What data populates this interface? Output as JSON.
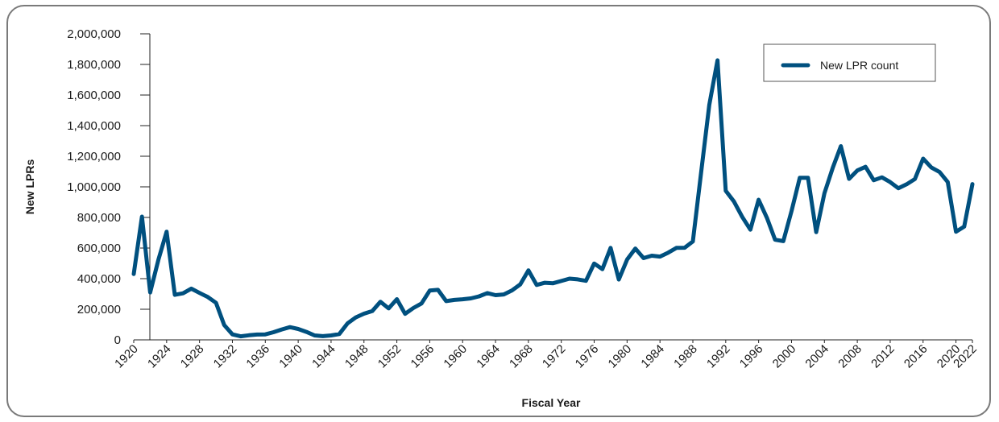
{
  "chart_data": {
    "type": "line",
    "title": "",
    "xlabel": "Fiscal Year",
    "ylabel": "New LPRs",
    "xlim": [
      1920,
      2022
    ],
    "ylim": [
      0,
      2000000
    ],
    "grid": false,
    "legend_position": "top-right",
    "x_ticks": [
      1920,
      1924,
      1928,
      1932,
      1936,
      1940,
      1944,
      1948,
      1952,
      1956,
      1960,
      1964,
      1968,
      1972,
      1976,
      1980,
      1984,
      1988,
      1992,
      1996,
      2000,
      2004,
      2008,
      2012,
      2016,
      2020,
      2022
    ],
    "y_ticks": [
      0,
      200000,
      400000,
      600000,
      800000,
      1000000,
      1200000,
      1400000,
      1600000,
      1800000,
      2000000
    ],
    "y_tick_labels": [
      "0",
      "200,000",
      "400,000",
      "600,000",
      "800,000",
      "1,000,000",
      "1,200,000",
      "1,400,000",
      "1,600,000",
      "1,800,000",
      "2,000,000"
    ],
    "series": [
      {
        "name": "New LPR count",
        "color": "#00507f",
        "x": [
          1920,
          1921,
          1922,
          1923,
          1924,
          1925,
          1926,
          1927,
          1928,
          1929,
          1930,
          1931,
          1932,
          1933,
          1934,
          1935,
          1936,
          1937,
          1938,
          1939,
          1940,
          1941,
          1942,
          1943,
          1944,
          1945,
          1946,
          1947,
          1948,
          1949,
          1950,
          1951,
          1952,
          1953,
          1954,
          1955,
          1956,
          1957,
          1958,
          1959,
          1960,
          1961,
          1962,
          1963,
          1964,
          1965,
          1966,
          1967,
          1968,
          1969,
          1970,
          1971,
          1972,
          1973,
          1974,
          1975,
          1976,
          1977,
          1978,
          1979,
          1980,
          1981,
          1982,
          1983,
          1984,
          1985,
          1986,
          1987,
          1988,
          1989,
          1990,
          1991,
          1992,
          1993,
          1994,
          1995,
          1996,
          1997,
          1998,
          1999,
          2000,
          2001,
          2002,
          2003,
          2004,
          2005,
          2006,
          2007,
          2008,
          2009,
          2010,
          2011,
          2012,
          2013,
          2014,
          2015,
          2016,
          2017,
          2018,
          2019,
          2020,
          2021,
          2022
        ],
        "values": [
          430000,
          805000,
          310000,
          523000,
          707000,
          294000,
          304000,
          335000,
          307000,
          280000,
          242000,
          97000,
          36000,
          23000,
          30000,
          35000,
          36000,
          50000,
          68000,
          83000,
          71000,
          52000,
          29000,
          24000,
          29000,
          38000,
          108000,
          147000,
          171000,
          188000,
          249000,
          206000,
          266000,
          170000,
          208000,
          238000,
          322000,
          327000,
          253000,
          261000,
          265000,
          271000,
          284000,
          306000,
          292000,
          297000,
          323000,
          362000,
          454000,
          359000,
          373000,
          370000,
          385000,
          400000,
          395000,
          386000,
          499000,
          462000,
          601000,
          394000,
          525000,
          597000,
          534000,
          550000,
          544000,
          570000,
          601000,
          602000,
          643000,
          1091000,
          1536000,
          1827000,
          974000,
          904000,
          804000,
          720000,
          916000,
          798000,
          654000,
          645000,
          842000,
          1059000,
          1059000,
          704000,
          958000,
          1122000,
          1266000,
          1052000,
          1107000,
          1131000,
          1043000,
          1062000,
          1031000,
          991000,
          1017000,
          1051000,
          1184000,
          1127000,
          1097000,
          1031000,
          707000,
          740000,
          1018000
        ]
      }
    ]
  }
}
